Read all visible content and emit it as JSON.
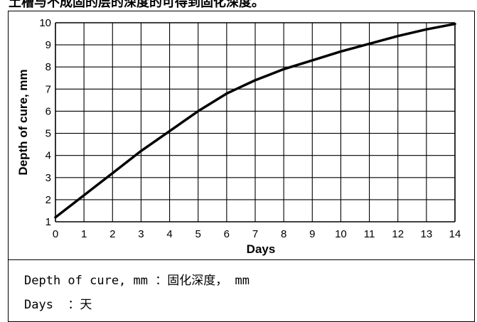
{
  "top_caption": "土槽与不成固的层的深度的可得到固化深度。",
  "chart_data": {
    "type": "line",
    "xlabel": "Days",
    "ylabel": "Depth of cure, mm",
    "xlim": [
      0,
      14
    ],
    "ylim": [
      1,
      10
    ],
    "x_ticks": [
      "0",
      "1",
      "2",
      "3",
      "4",
      "5",
      "6",
      "7",
      "8",
      "9",
      "10",
      "11",
      "12",
      "13",
      "14"
    ],
    "y_ticks": [
      "1",
      "2",
      "3",
      "4",
      "5",
      "6",
      "7",
      "8",
      "9",
      "10"
    ],
    "grid": true,
    "series": [
      {
        "x": [
          0,
          1,
          2,
          3,
          4,
          5,
          6,
          6.5,
          7,
          8,
          9,
          10,
          11,
          12,
          13,
          14
        ],
        "y": [
          1.2,
          2.2,
          3.2,
          4.2,
          5.1,
          6.0,
          6.8,
          7.1,
          7.4,
          7.9,
          8.3,
          8.7,
          9.05,
          9.4,
          9.7,
          9.95
        ]
      }
    ],
    "line_color": "#000000"
  },
  "legend": {
    "line1": "Depth of cure, mm ：固化深度， mm",
    "line2": "Days  ：天"
  }
}
